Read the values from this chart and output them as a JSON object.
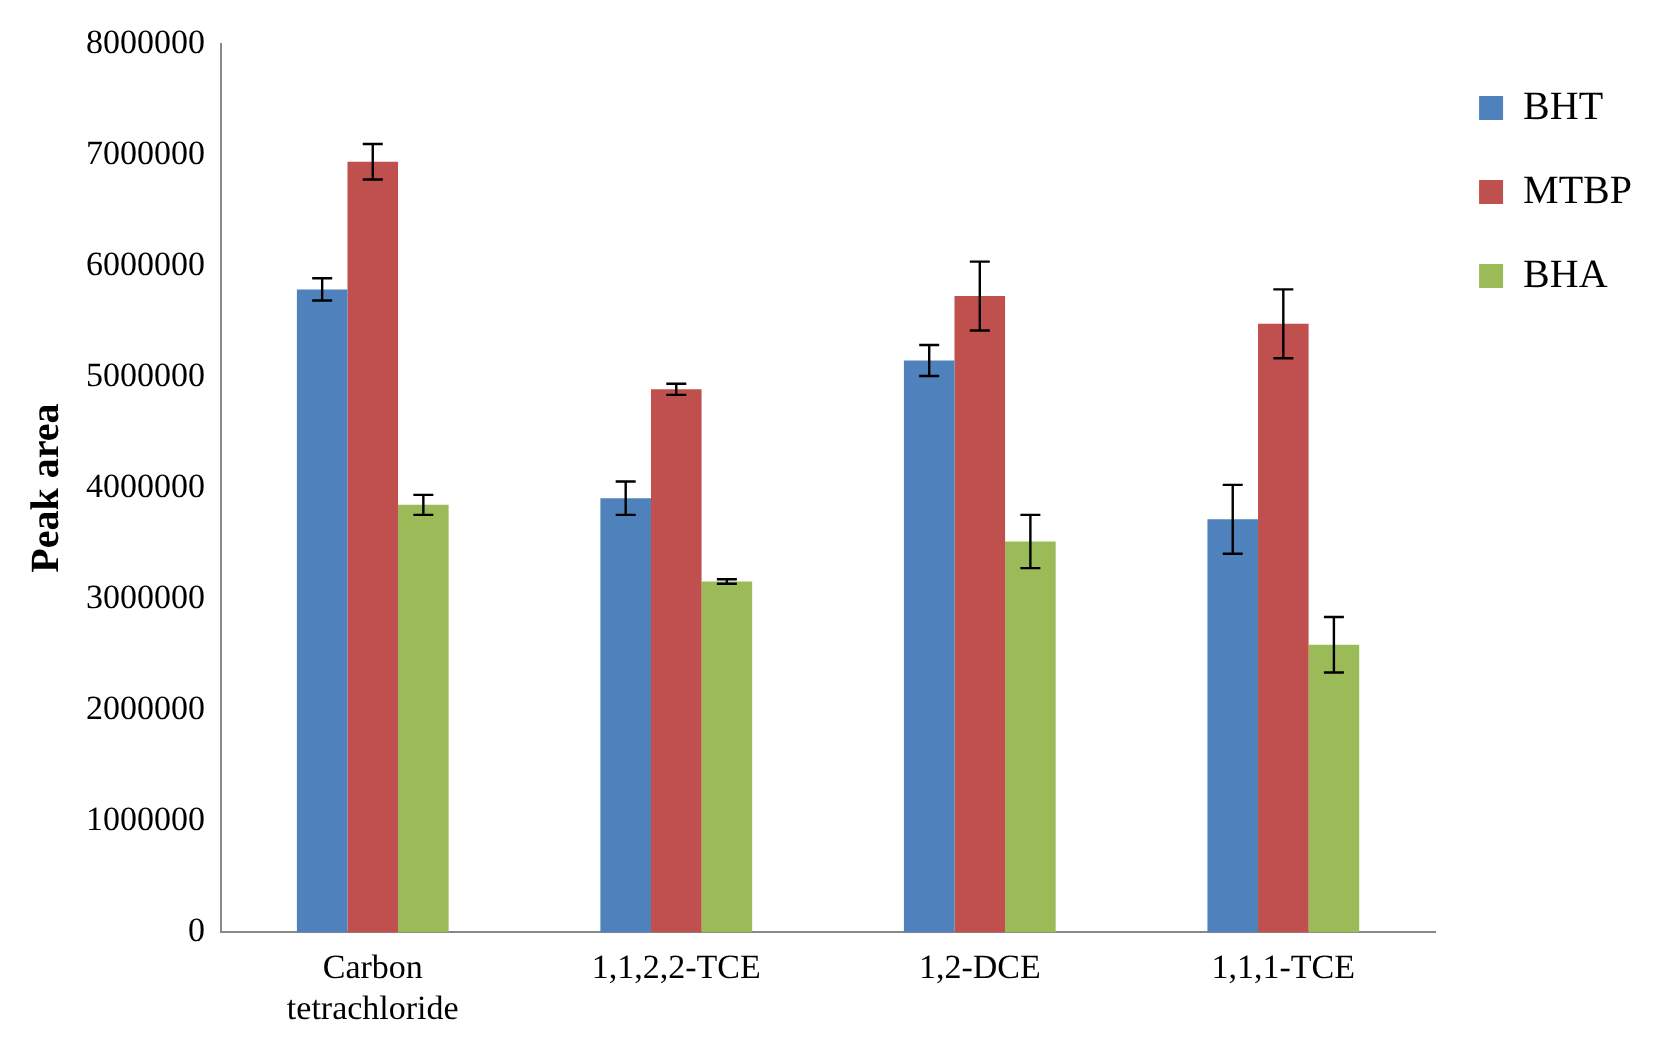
{
  "chart_data": {
    "type": "bar",
    "ylabel": "Peak area",
    "categories": [
      "Carbon tetrachloride",
      "1,1,2,2-TCE",
      "1,2-DCE",
      "1,1,1-TCE"
    ],
    "series": [
      {
        "name": "BHT",
        "color": "#4f81bd",
        "values": [
          5790000,
          3910000,
          5150000,
          3720000
        ],
        "errors": [
          100000,
          150000,
          140000,
          310000
        ]
      },
      {
        "name": "MTBP",
        "color": "#c0504d",
        "values": [
          6940000,
          4890000,
          5730000,
          5480000
        ],
        "errors": [
          160000,
          50000,
          310000,
          310000
        ]
      },
      {
        "name": "BHA",
        "color": "#9bbb59",
        "values": [
          3850000,
          3160000,
          3520000,
          2590000
        ],
        "errors": [
          90000,
          20000,
          240000,
          250000
        ]
      }
    ],
    "ylim": [
      0,
      8000000
    ],
    "yticks": [
      0,
      1000000,
      2000000,
      3000000,
      4000000,
      5000000,
      6000000,
      7000000,
      8000000
    ],
    "grid": false,
    "legend": "top right"
  }
}
